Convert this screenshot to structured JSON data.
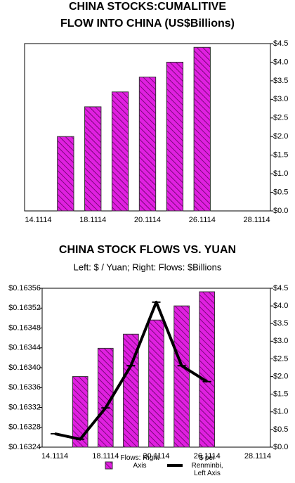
{
  "chart_data": [
    {
      "type": "bar",
      "title": [
        "CHINA STOCKS:CUMALITIVE",
        "FLOW INTO CHINA (US$Billions)"
      ],
      "categories": [
        "14.1114",
        null,
        "18.1114",
        null,
        "20.1114",
        null,
        "26.1114",
        null,
        "28.1114"
      ],
      "values": [
        null,
        2.0,
        2.8,
        3.2,
        3.6,
        4.0,
        4.4,
        null,
        null
      ],
      "color": "#e020e0",
      "yaxis_position": "right",
      "ylim": [
        0,
        4.5
      ],
      "yticks": [
        {
          "value": 0,
          "label": "$0.0"
        },
        {
          "value": 0.5,
          "label": "$0.5"
        },
        {
          "value": 1,
          "label": "$1.0"
        },
        {
          "value": 1.5,
          "label": "$1.5"
        },
        {
          "value": 2,
          "label": "$2.0"
        },
        {
          "value": 2.5,
          "label": "$2.5"
        },
        {
          "value": 3,
          "label": "$3.0"
        },
        {
          "value": 3.5,
          "label": "$3.5"
        },
        {
          "value": 4,
          "label": "$4.0"
        },
        {
          "value": 4.5,
          "label": "$4.5"
        }
      ],
      "grid": false
    },
    {
      "type": "combo",
      "title": [
        "CHINA STOCK FLOWS VS. YUAN"
      ],
      "subtitle": "Left: $ / Yuan; Right: Flows: $Billions",
      "categories": [
        "14.1114",
        null,
        "18.1114",
        null,
        "20.1114",
        null,
        "26.1114",
        null,
        "28.1114"
      ],
      "series": [
        {
          "name": "Flows: Right Axis",
          "type": "bar",
          "axis": "y2",
          "color": "#e020e0",
          "values": [
            null,
            2.0,
            2.8,
            3.2,
            3.6,
            4.0,
            4.4,
            null,
            null
          ]
        },
        {
          "name": "$ per Renminbi, Left Axis",
          "type": "line",
          "axis": "y",
          "color": "#000000",
          "values": [
            0.163267,
            0.163256,
            0.163319,
            0.163404,
            0.163532,
            0.163404,
            0.163372,
            null,
            null
          ]
        }
      ],
      "ylim": [
        0.16324,
        0.16356
      ],
      "yticks": [
        {
          "value": 0.16324,
          "label": "$0.16324"
        },
        {
          "value": 0.16328,
          "label": "$0.16328"
        },
        {
          "value": 0.16332,
          "label": "$0.16332"
        },
        {
          "value": 0.16336,
          "label": "$0.16336"
        },
        {
          "value": 0.1634,
          "label": "$0.16340"
        },
        {
          "value": 0.16344,
          "label": "$0.16344"
        },
        {
          "value": 0.16348,
          "label": "$0.16348"
        },
        {
          "value": 0.16352,
          "label": "$0.16352"
        },
        {
          "value": 0.16356,
          "label": "$0.16356"
        }
      ],
      "y2lim": [
        0,
        4.5
      ],
      "y2ticks": [
        {
          "value": 0,
          "label": "$0.0"
        },
        {
          "value": 0.5,
          "label": "$0.5"
        },
        {
          "value": 1,
          "label": "$1.0"
        },
        {
          "value": 1.5,
          "label": "$1.5"
        },
        {
          "value": 2,
          "label": "$2.0"
        },
        {
          "value": 2.5,
          "label": "$2.5"
        },
        {
          "value": 3,
          "label": "$3.0"
        },
        {
          "value": 3.5,
          "label": "$3.5"
        },
        {
          "value": 4,
          "label": "$4.0"
        },
        {
          "value": 4.5,
          "label": "$4.5"
        }
      ],
      "grid": false
    }
  ]
}
